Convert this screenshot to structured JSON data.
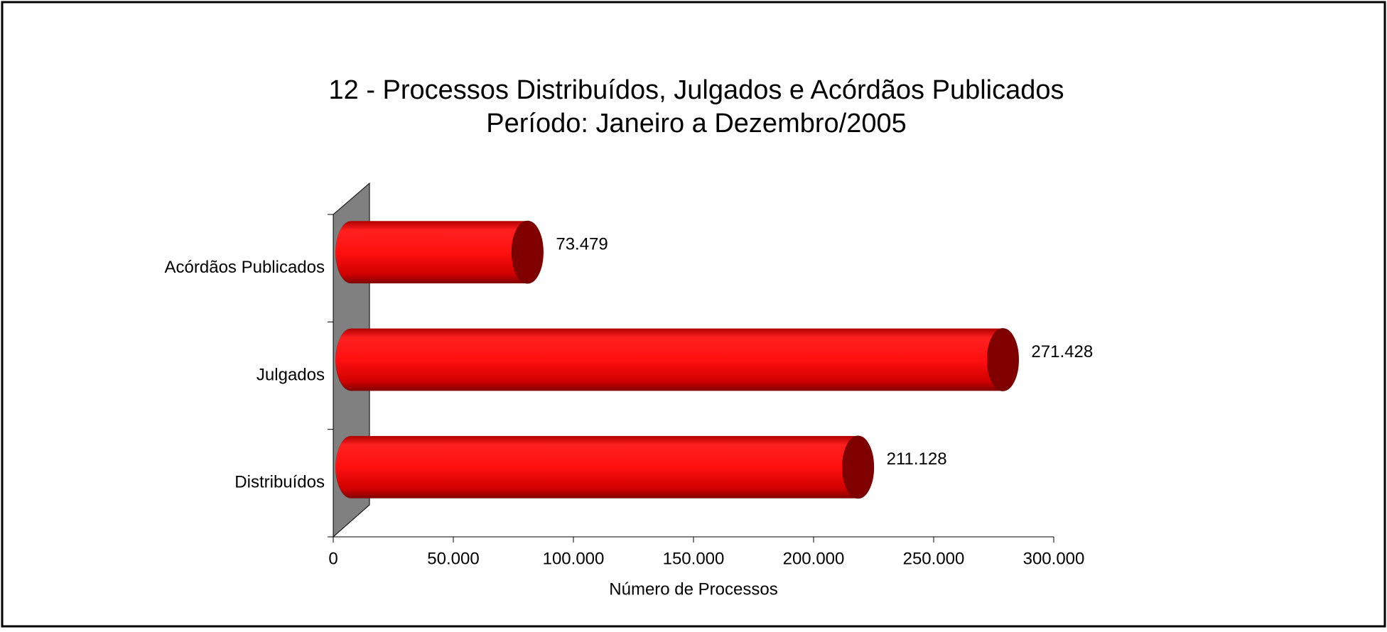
{
  "chart_data": {
    "type": "bar",
    "orientation": "horizontal",
    "title": "12 - Processos Distribuídos, Julgados e Acórdãos Publicados",
    "subtitle": "Período: Janeiro a Dezembro/2005",
    "x_label": "Número de Processos",
    "categories": [
      "Distribuídos",
      "Julgados",
      "Acórdãos Publicados"
    ],
    "values": [
      211128,
      271428,
      73479
    ],
    "value_labels": [
      "211.128",
      "271.428",
      "73.479"
    ],
    "color": "#e00000",
    "xlim": [
      0,
      300000
    ],
    "xticks": [
      0,
      {
        "value": 50000,
        "label": "50.000"
      },
      {
        "value": 100000,
        "label": "100.000"
      },
      {
        "value": 150000,
        "label": "150.000"
      },
      {
        "value": 200000,
        "label": "200.000"
      },
      {
        "value": 250000,
        "label": "250.000"
      },
      {
        "value": 300000,
        "label": "300.000"
      }
    ]
  }
}
